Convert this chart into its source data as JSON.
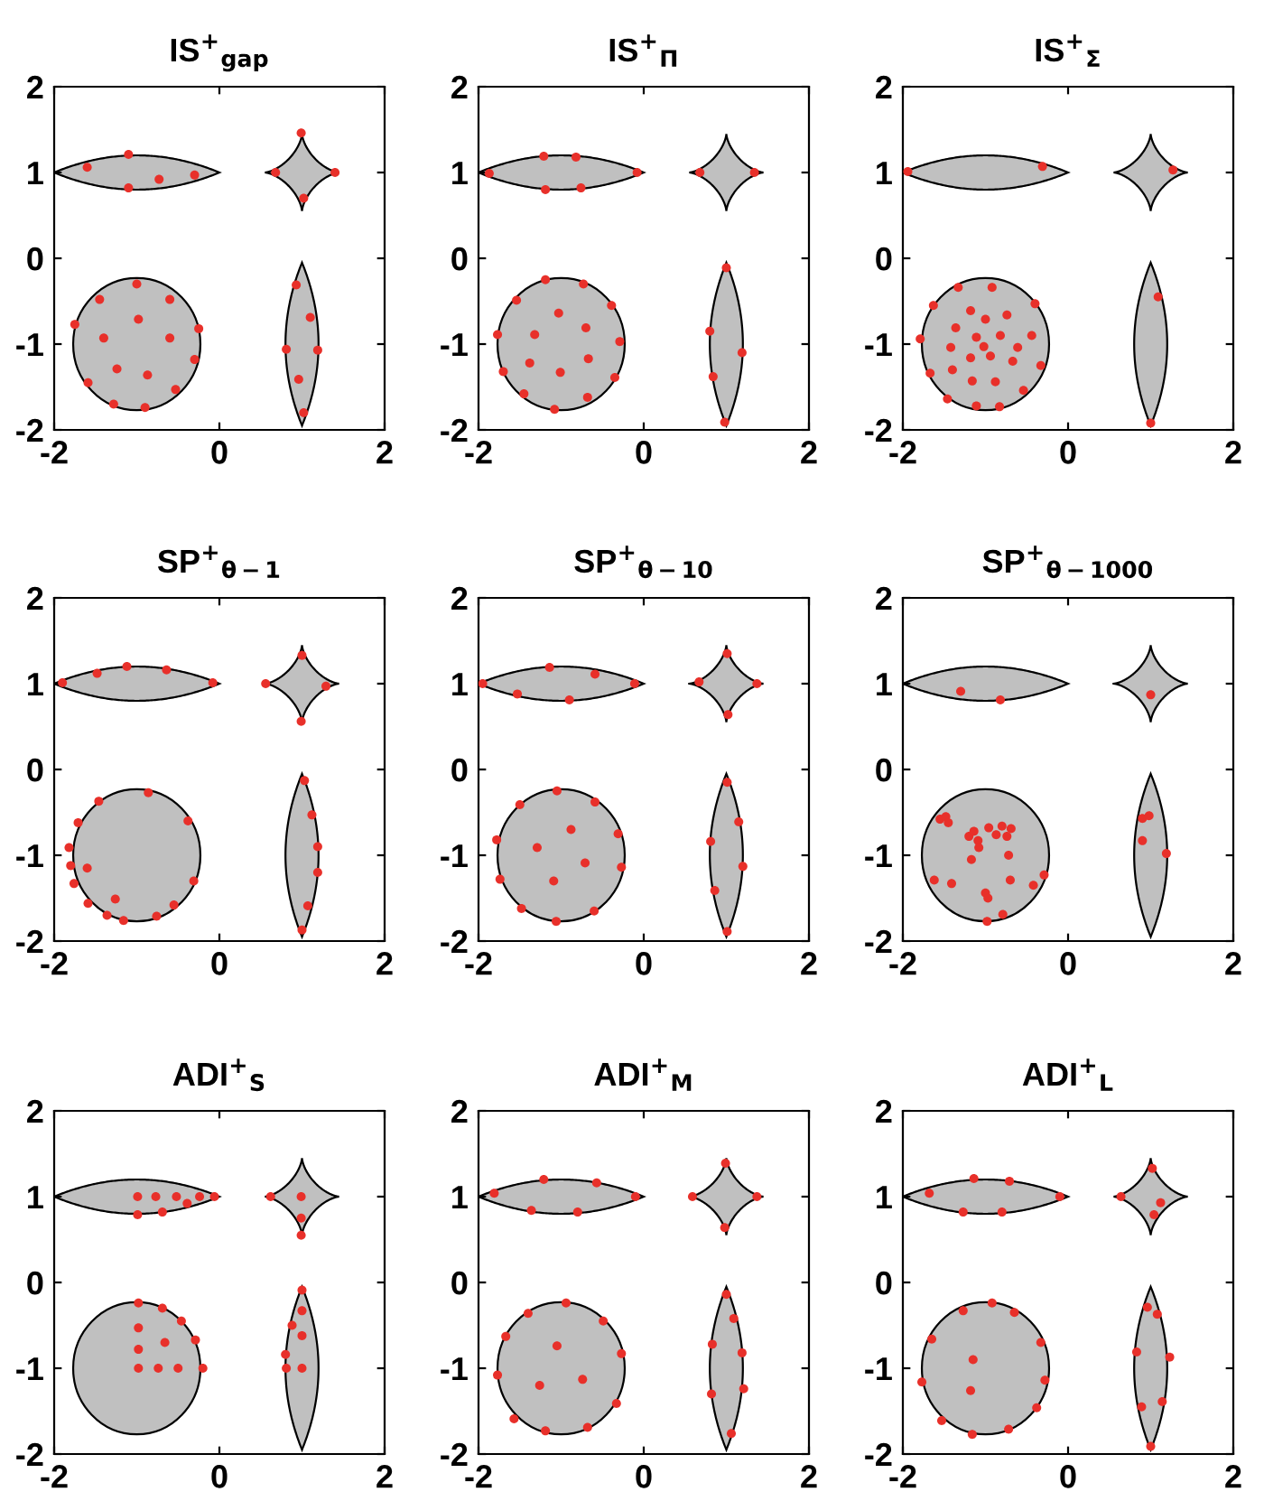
{
  "chart_data": [
    {
      "type": "scatter",
      "title": "IS$^{+}$$_{gap}$",
      "color": "#e8302a",
      "marker": "circle",
      "grid": false,
      "xlim": [
        -2,
        2
      ],
      "ylim": [
        -2,
        2
      ],
      "xticks": [
        -2,
        0,
        2
      ],
      "yticks": [
        -2,
        -1,
        0,
        1,
        2
      ],
      "x": [
        -1.6,
        -1.1,
        -1.1,
        -0.73,
        -0.3,
        0.68,
        0.99,
        1.02,
        1.4,
        -1.0,
        -1.45,
        -0.6,
        -1.75,
        -0.98,
        -0.25,
        -1.4,
        -0.6,
        -0.3,
        -1.24,
        -0.87,
        -1.59,
        -0.53,
        -1.28,
        -0.9,
        0.93,
        1.1,
        0.81,
        1.19,
        0.96,
        1.02
      ],
      "values": [
        1.06,
        1.21,
        0.82,
        0.92,
        0.97,
        1.0,
        1.46,
        0.7,
        1.0,
        -0.3,
        -0.48,
        -0.48,
        -0.77,
        -0.71,
        -0.82,
        -0.93,
        -0.93,
        -1.18,
        -1.29,
        -1.36,
        -1.45,
        -1.53,
        -1.7,
        -1.74,
        -0.31,
        -0.69,
        -1.06,
        -1.07,
        -1.41,
        -1.8
      ]
    },
    {
      "type": "scatter",
      "title": "IS$^{+}$$_{Π}$",
      "color": "#e8302a",
      "marker": "circle",
      "grid": false,
      "xlim": [
        -2,
        2
      ],
      "ylim": [
        -2,
        2
      ],
      "xticks": [
        -2,
        0,
        2
      ],
      "yticks": [
        -2,
        -1,
        0,
        1,
        2
      ],
      "x": [
        -1.87,
        -1.21,
        -0.82,
        -1.19,
        -0.76,
        -0.08,
        0.68,
        1.34,
        -1.19,
        -0.73,
        -1.54,
        -1.03,
        -0.39,
        -1.77,
        -1.32,
        -0.7,
        -0.29,
        -1.7,
        -1.38,
        -0.67,
        -1.01,
        -0.35,
        -1.45,
        -0.68,
        -1.08,
        1.0,
        0.8,
        1.19,
        0.84,
        0.98
      ],
      "values": [
        0.99,
        1.19,
        1.18,
        0.8,
        0.82,
        1.0,
        1.0,
        1.0,
        -0.25,
        -0.3,
        -0.49,
        -0.64,
        -0.55,
        -0.89,
        -0.89,
        -0.81,
        -0.97,
        -1.32,
        -1.22,
        -1.17,
        -1.33,
        -1.39,
        -1.58,
        -1.62,
        -1.76,
        -0.11,
        -0.85,
        -1.1,
        -1.38,
        -1.91
      ]
    },
    {
      "type": "scatter",
      "title": "IS$^{+}$$_{Σ}$",
      "color": "#e8302a",
      "marker": "circle",
      "grid": false,
      "xlim": [
        -2,
        2
      ],
      "ylim": [
        -2,
        2
      ],
      "xticks": [
        -2,
        0,
        2
      ],
      "yticks": [
        -2,
        -1,
        0,
        1,
        2
      ],
      "x": [
        -1.94,
        -0.31,
        1.27,
        -1.33,
        -0.92,
        -1.63,
        -0.4,
        -1.18,
        -0.74,
        -1.0,
        -1.36,
        -1.79,
        -1.11,
        -0.82,
        -0.44,
        -1.42,
        -1.02,
        -0.61,
        -1.18,
        -0.94,
        -0.67,
        -1.4,
        -0.33,
        -1.67,
        -1.16,
        -0.88,
        -0.54,
        -1.46,
        -1.11,
        -0.83,
        1.09,
        1.0
      ],
      "values": [
        1.01,
        1.07,
        1.03,
        -0.34,
        -0.34,
        -0.55,
        -0.53,
        -0.61,
        -0.66,
        -0.71,
        -0.81,
        -0.94,
        -0.92,
        -0.9,
        -0.9,
        -1.04,
        -1.03,
        -1.04,
        -1.16,
        -1.14,
        -1.2,
        -1.3,
        -1.25,
        -1.34,
        -1.43,
        -1.44,
        -1.54,
        -1.64,
        -1.72,
        -1.73,
        -0.45,
        -1.92
      ]
    },
    {
      "type": "scatter",
      "title": "SP$^{+}$$_{θ−1}$",
      "color": "#e8302a",
      "marker": "circle",
      "grid": false,
      "xlim": [
        -2,
        2
      ],
      "ylim": [
        -2,
        2
      ],
      "xticks": [
        -2,
        0,
        2
      ],
      "yticks": [
        -2,
        -1,
        0,
        1,
        2
      ],
      "x": [
        -1.9,
        -1.48,
        -1.12,
        -0.64,
        -0.08,
        0.56,
        1.0,
        1.29,
        0.99,
        -0.86,
        -1.46,
        -0.38,
        -1.71,
        -1.82,
        -1.8,
        -1.6,
        -0.31,
        -1.76,
        -1.59,
        -1.26,
        -1.36,
        -1.16,
        -0.76,
        -0.55,
        1.03,
        1.12,
        1.19,
        1.19,
        1.07,
        1.0
      ],
      "values": [
        1.01,
        1.12,
        1.2,
        1.16,
        1.01,
        1.0,
        1.33,
        0.97,
        0.56,
        -0.27,
        -0.37,
        -0.6,
        -0.62,
        -0.91,
        -1.12,
        -1.15,
        -1.3,
        -1.33,
        -1.56,
        -1.51,
        -1.7,
        -1.76,
        -1.71,
        -1.58,
        -0.13,
        -0.53,
        -0.9,
        -1.2,
        -1.59,
        -1.87
      ]
    },
    {
      "type": "scatter",
      "title": "SP$^{+}$$_{θ−10}$",
      "color": "#e8302a",
      "marker": "circle",
      "grid": false,
      "xlim": [
        -2,
        2
      ],
      "ylim": [
        -2,
        2
      ],
      "xticks": [
        -2,
        0,
        2
      ],
      "yticks": [
        -2,
        -1,
        0,
        1,
        2
      ],
      "x": [
        -1.95,
        -1.53,
        -1.14,
        -0.59,
        -0.9,
        -0.11,
        0.67,
        1.01,
        1.37,
        1.02,
        -1.05,
        -1.5,
        -0.59,
        -0.88,
        -0.31,
        -1.78,
        -1.29,
        -0.71,
        -1.74,
        -1.09,
        -0.27,
        -1.48,
        -0.6,
        -1.06,
        1.01,
        1.15,
        0.81,
        1.2,
        0.86,
        1.01
      ],
      "values": [
        1.0,
        0.88,
        1.19,
        1.11,
        0.81,
        1.0,
        1.02,
        1.35,
        1.0,
        0.64,
        -0.25,
        -0.41,
        -0.38,
        -0.7,
        -0.75,
        -0.82,
        -0.91,
        -1.09,
        -1.28,
        -1.3,
        -1.14,
        -1.62,
        -1.65,
        -1.77,
        -0.15,
        -0.61,
        -0.84,
        -1.13,
        -1.41,
        -1.89
      ]
    },
    {
      "type": "scatter",
      "title": "SP$^{+}$$_{θ−1000}$",
      "color": "#e8302a",
      "marker": "circle",
      "grid": false,
      "xlim": [
        -2,
        2
      ],
      "ylim": [
        -2,
        2
      ],
      "xticks": [
        -2,
        0,
        2
      ],
      "yticks": [
        -2,
        -1,
        0,
        1,
        2
      ],
      "x": [
        -1.3,
        -0.82,
        1.0,
        -1.55,
        -1.48,
        -1.45,
        -1.2,
        -1.14,
        -1.09,
        -0.96,
        -0.8,
        -0.87,
        -0.74,
        -0.69,
        -1.08,
        -1.17,
        -0.72,
        -1.62,
        -1.41,
        -1.0,
        -0.97,
        -0.7,
        -0.42,
        -0.29,
        -0.79,
        -0.98,
        0.9,
        0.98,
        0.9,
        1.19
      ],
      "values": [
        0.91,
        0.81,
        0.87,
        -0.58,
        -0.55,
        -0.62,
        -0.78,
        -0.72,
        -0.83,
        -0.68,
        -0.66,
        -0.76,
        -0.78,
        -0.69,
        -0.91,
        -1.05,
        -1.0,
        -1.29,
        -1.33,
        -1.44,
        -1.5,
        -1.29,
        -1.35,
        -1.23,
        -1.69,
        -1.77,
        -0.57,
        -0.54,
        -0.83,
        -0.98
      ]
    },
    {
      "type": "scatter",
      "title": "ADI$^{+}$$_{S}$",
      "color": "#e8302a",
      "marker": "circle",
      "grid": false,
      "xlim": [
        -2,
        2
      ],
      "ylim": [
        -2,
        2
      ],
      "xticks": [
        -2,
        0,
        2
      ],
      "yticks": [
        -2,
        -1,
        0,
        1,
        2
      ],
      "x": [
        -0.99,
        -0.77,
        -0.52,
        -0.24,
        -0.06,
        -0.39,
        -0.69,
        -0.99,
        0.62,
        0.99,
        0.99,
        0.99,
        -0.98,
        -0.69,
        -0.46,
        -0.29,
        -0.98,
        -0.66,
        -0.98,
        -0.98,
        -0.74,
        -0.5,
        -0.2,
        1.0,
        1.0,
        0.88,
        1.0,
        0.8,
        0.81,
        1.0
      ],
      "values": [
        1.0,
        1.0,
        1.0,
        1.0,
        1.0,
        0.92,
        0.82,
        0.79,
        1.0,
        1.0,
        0.75,
        0.55,
        -0.24,
        -0.3,
        -0.45,
        -0.67,
        -0.53,
        -0.7,
        -0.78,
        -1.0,
        -1.0,
        -1.0,
        -1.0,
        -0.09,
        -0.33,
        -0.5,
        -0.62,
        -0.84,
        -1.0,
        -1.0
      ]
    },
    {
      "type": "scatter",
      "title": "ADI$^{+}$$_{M}$",
      "color": "#e8302a",
      "marker": "circle",
      "grid": false,
      "xlim": [
        -2,
        2
      ],
      "ylim": [
        -2,
        2
      ],
      "xticks": [
        -2,
        0,
        2
      ],
      "yticks": [
        -2,
        -1,
        0,
        1,
        2
      ],
      "x": [
        -1.81,
        -1.21,
        -0.57,
        -1.36,
        -0.8,
        -0.1,
        0.59,
        0.99,
        1.37,
        0.98,
        -0.94,
        -1.4,
        -0.49,
        -1.67,
        -1.05,
        -0.27,
        -1.77,
        -1.26,
        -0.74,
        -0.33,
        -1.57,
        -1.19,
        -0.68,
        1.0,
        1.09,
        0.83,
        1.19,
        1.21,
        0.82,
        1.06
      ],
      "values": [
        1.04,
        1.2,
        1.16,
        0.84,
        0.82,
        1.0,
        1.0,
        1.39,
        1.0,
        0.64,
        -0.24,
        -0.36,
        -0.45,
        -0.63,
        -0.74,
        -0.83,
        -1.08,
        -1.2,
        -1.13,
        -1.41,
        -1.59,
        -1.73,
        -1.69,
        -0.14,
        -0.42,
        -0.72,
        -0.82,
        -1.24,
        -1.3,
        -1.76
      ]
    },
    {
      "type": "scatter",
      "title": "ADI$^{+}$$_{L}$",
      "color": "#e8302a",
      "marker": "circle",
      "grid": false,
      "xlim": [
        -2,
        2
      ],
      "ylim": [
        -2,
        2
      ],
      "xticks": [
        -2,
        0,
        2
      ],
      "yticks": [
        -2,
        -1,
        0,
        1,
        2
      ],
      "x": [
        -1.68,
        -1.14,
        -0.71,
        -1.27,
        -0.8,
        -0.1,
        0.64,
        1.02,
        1.12,
        1.04,
        -1.27,
        -0.92,
        -0.65,
        -1.65,
        -0.33,
        -1.15,
        -1.77,
        -0.28,
        -1.18,
        -0.38,
        -1.53,
        -1.16,
        -0.72,
        0.96,
        1.08,
        0.83,
        1.23,
        0.89,
        1.14,
        1.0
      ],
      "values": [
        1.04,
        1.21,
        1.18,
        0.82,
        0.82,
        1.0,
        1.0,
        1.33,
        0.93,
        0.79,
        -0.33,
        -0.24,
        -0.35,
        -0.66,
        -0.7,
        -0.9,
        -1.16,
        -1.14,
        -1.26,
        -1.46,
        -1.61,
        -1.77,
        -1.71,
        -0.29,
        -0.37,
        -0.81,
        -0.87,
        -1.45,
        -1.39,
        -1.91
      ]
    }
  ]
}
